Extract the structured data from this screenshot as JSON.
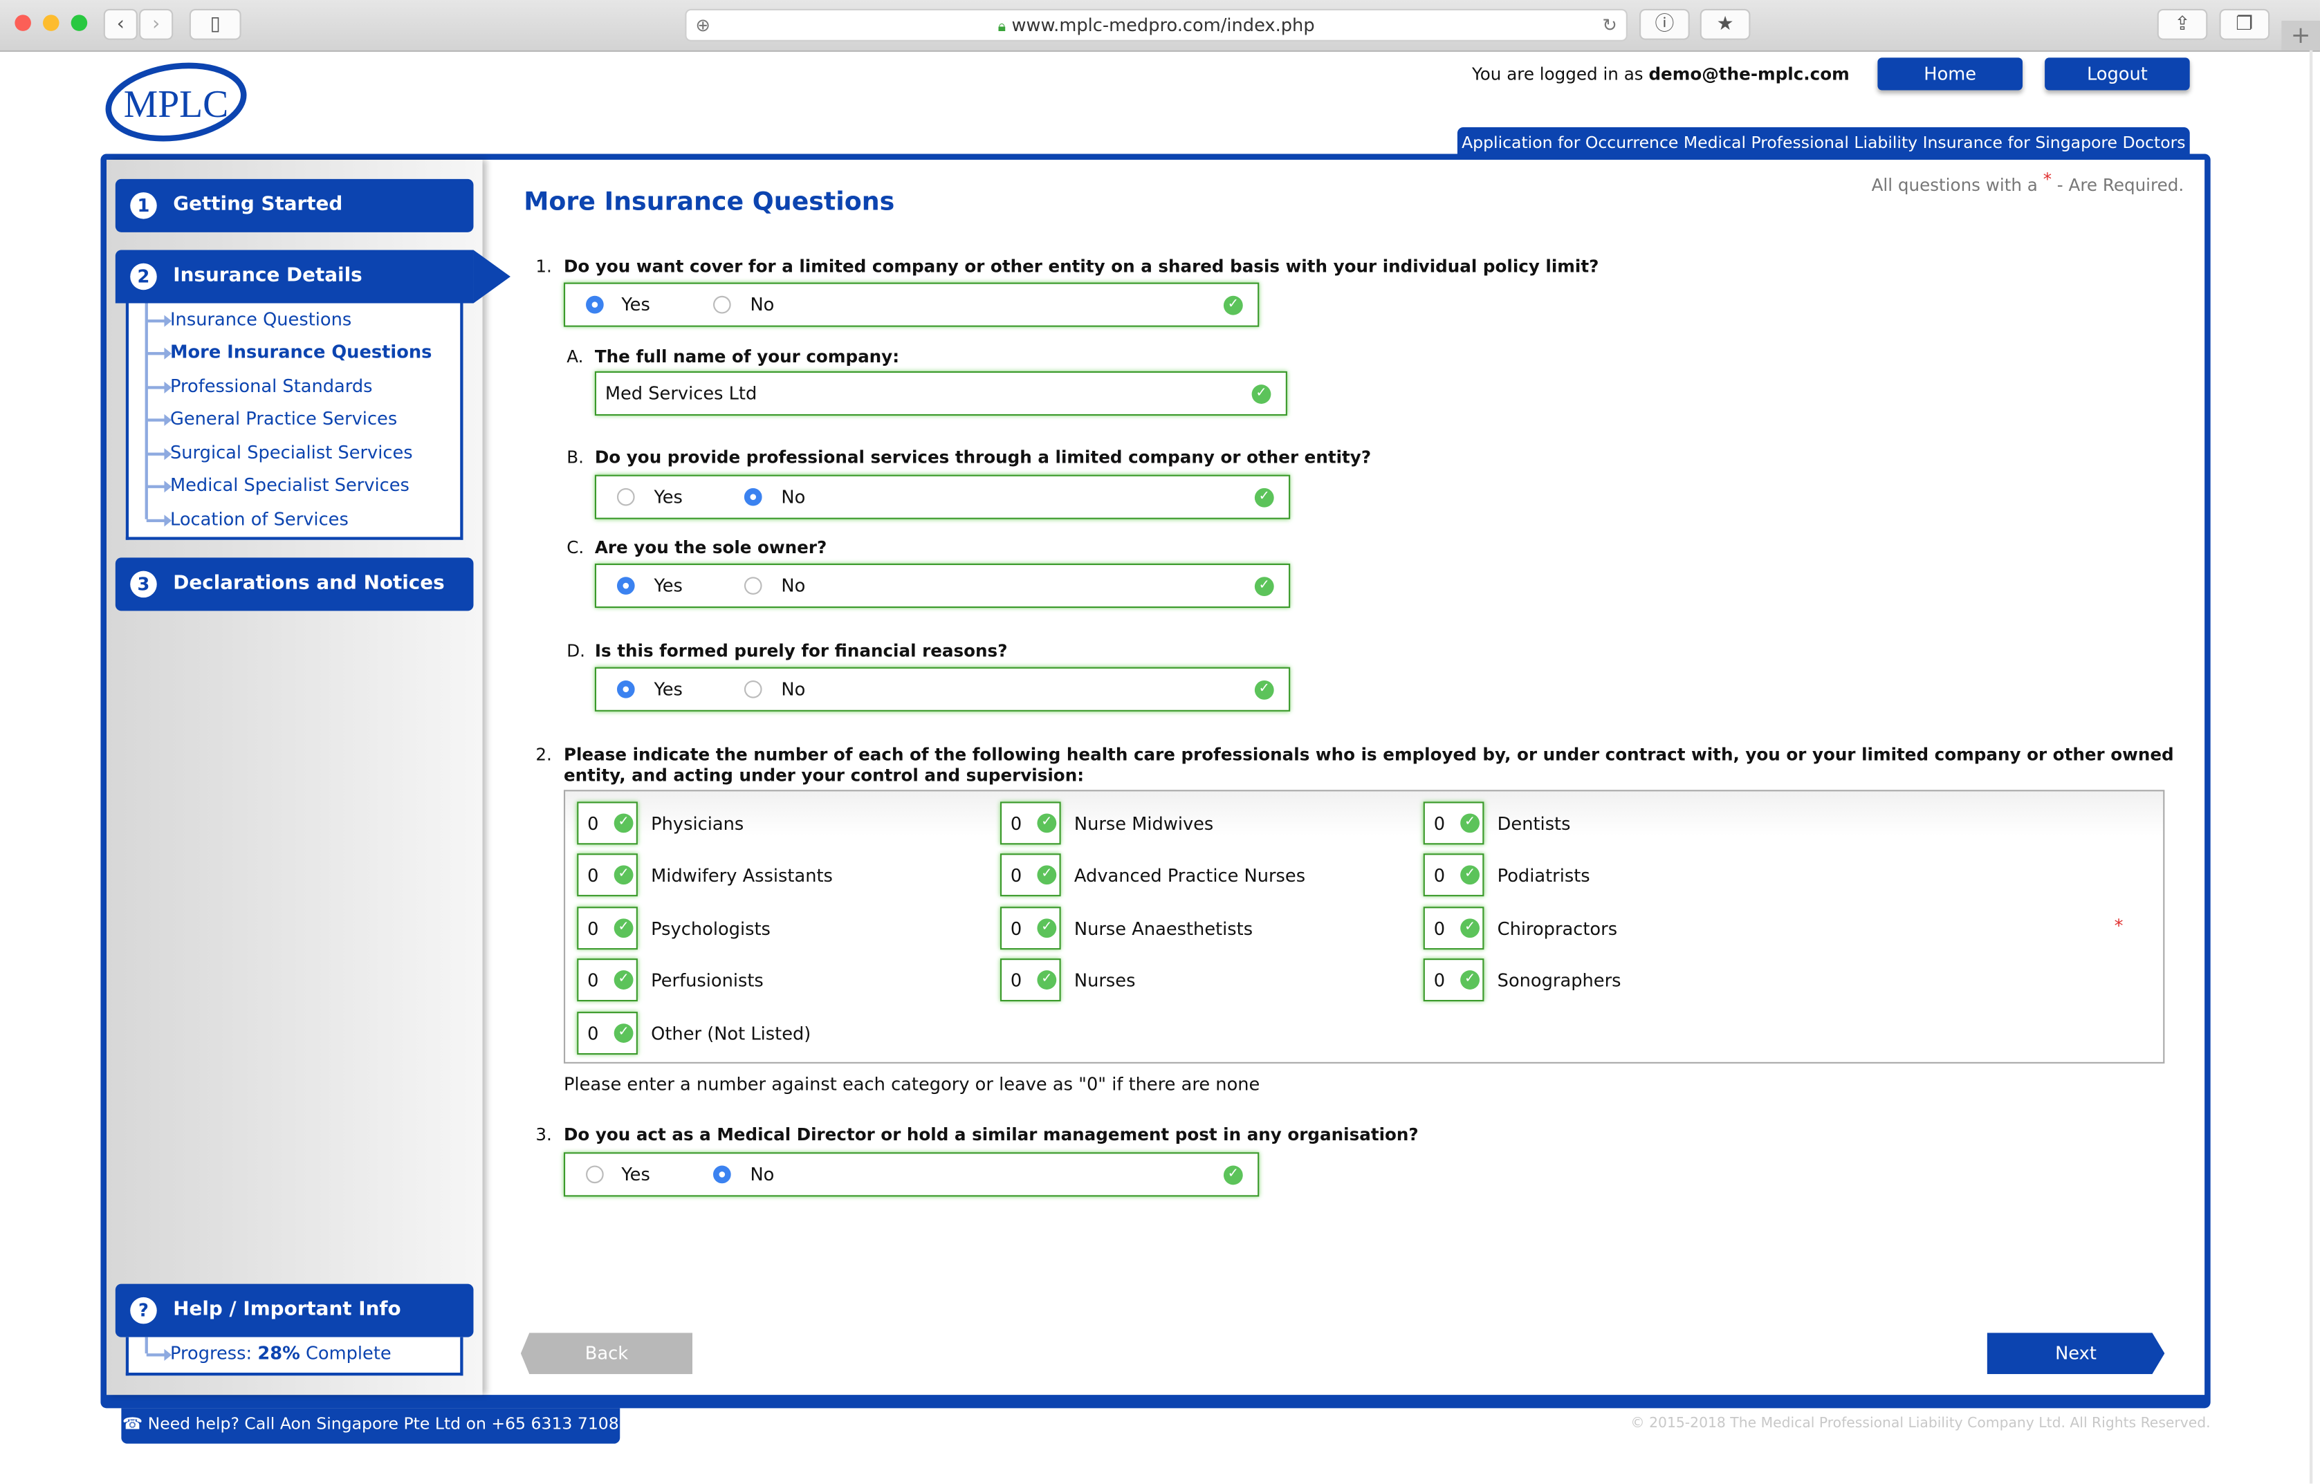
{
  "browser": {
    "url": "www.mplc-medpro.com/index.php",
    "icons": [
      "back-icon",
      "forward-icon",
      "sidebar-icon",
      "add-icon",
      "lock-icon",
      "reload-icon",
      "info-icon",
      "bookmark-icon",
      "share-icon",
      "tabs-icon",
      "new-tab-icon"
    ]
  },
  "header": {
    "logo_text": "MPLC",
    "logged_in_prefix": "You are logged in as ",
    "user_email": "demo@the-mplc.com",
    "home_label": "Home",
    "logout_label": "Logout",
    "app_title": "Application for Occurrence Medical Professional Liability Insurance for Singapore Doctors"
  },
  "sidebar": {
    "steps": [
      {
        "num": "1",
        "label": "Getting Started"
      },
      {
        "num": "2",
        "label": "Insurance Details"
      },
      {
        "num": "3",
        "label": "Declarations and Notices"
      }
    ],
    "sub_items": [
      {
        "label": "Insurance Questions"
      },
      {
        "label": "More Insurance Questions",
        "active": true
      },
      {
        "label": "Professional Standards"
      },
      {
        "label": "General Practice Services"
      },
      {
        "label": "Surgical Specialist Services"
      },
      {
        "label": "Medical Specialist Services"
      },
      {
        "label": "Location of Services"
      }
    ],
    "help": {
      "num": "?",
      "label": "Help / Important Info"
    },
    "progress": {
      "prefix": "Progress: ",
      "value": "28%",
      "suffix": " Complete",
      "percent": 28
    }
  },
  "main": {
    "title": "More Insurance Questions",
    "required_note_prefix": "All questions with a ",
    "required_star": "*",
    "required_note_suffix": " - Are Required.",
    "q1": {
      "num": "1.",
      "text": "Do you want cover for a limited company or other entity on a shared basis with your individual policy limit?",
      "yes": "Yes",
      "no": "No",
      "selected": "Yes"
    },
    "qa": {
      "num": "A.",
      "text": "The full name of your company:",
      "value": "Med Services Ltd"
    },
    "qb": {
      "num": "B.",
      "text": "Do you provide professional services through a limited company or other entity?",
      "yes": "Yes",
      "no": "No",
      "selected": "No"
    },
    "qc": {
      "num": "C.",
      "text": "Are you the sole owner?",
      "yes": "Yes",
      "no": "No",
      "selected": "Yes"
    },
    "qd": {
      "num": "D.",
      "text": "Is this formed purely for financial reasons?",
      "yes": "Yes",
      "no": "No",
      "selected": "Yes"
    },
    "q2": {
      "num": "2.",
      "line1": "Please indicate the number of each of the following health care professionals who is employed by, or under contract with, you or your limited company or other owned",
      "line2": "entity, and acting under your control and supervision:",
      "items": [
        {
          "label": "Physicians",
          "value": "0"
        },
        {
          "label": "Nurse Midwives",
          "value": "0"
        },
        {
          "label": "Dentists",
          "value": "0"
        },
        {
          "label": "Midwifery Assistants",
          "value": "0"
        },
        {
          "label": "Advanced Practice Nurses",
          "value": "0"
        },
        {
          "label": "Podiatrists",
          "value": "0"
        },
        {
          "label": "Psychologists",
          "value": "0"
        },
        {
          "label": "Nurse Anaesthetists",
          "value": "0"
        },
        {
          "label": "Chiropractors",
          "value": "0"
        },
        {
          "label": "Perfusionists",
          "value": "0"
        },
        {
          "label": "Nurses",
          "value": "0"
        },
        {
          "label": "Sonographers",
          "value": "0"
        },
        {
          "label": "Other (Not Listed)",
          "value": "0"
        }
      ],
      "star": "*",
      "note": "Please enter a number against each category or leave as \"0\" if there are none"
    },
    "q3": {
      "num": "3.",
      "text": "Do you act as a Medical Director or hold a similar management post in any organisation?",
      "yes": "Yes",
      "no": "No",
      "selected": "No"
    },
    "back_label": "Back",
    "next_label": "Next"
  },
  "footer": {
    "help_icon": "phone-icon",
    "help_text": "☎ Need help? Call Aon Singapore Pte Ltd on +65 6313 7108",
    "copyright": "© 2015-2018 The Medical Professional Liability Company Ltd. All Rights Reserved."
  },
  "colors": {
    "brand": "#0c44b0",
    "valid": "#5cc35a",
    "radio": "#3b82f0",
    "required": "#e03030"
  }
}
